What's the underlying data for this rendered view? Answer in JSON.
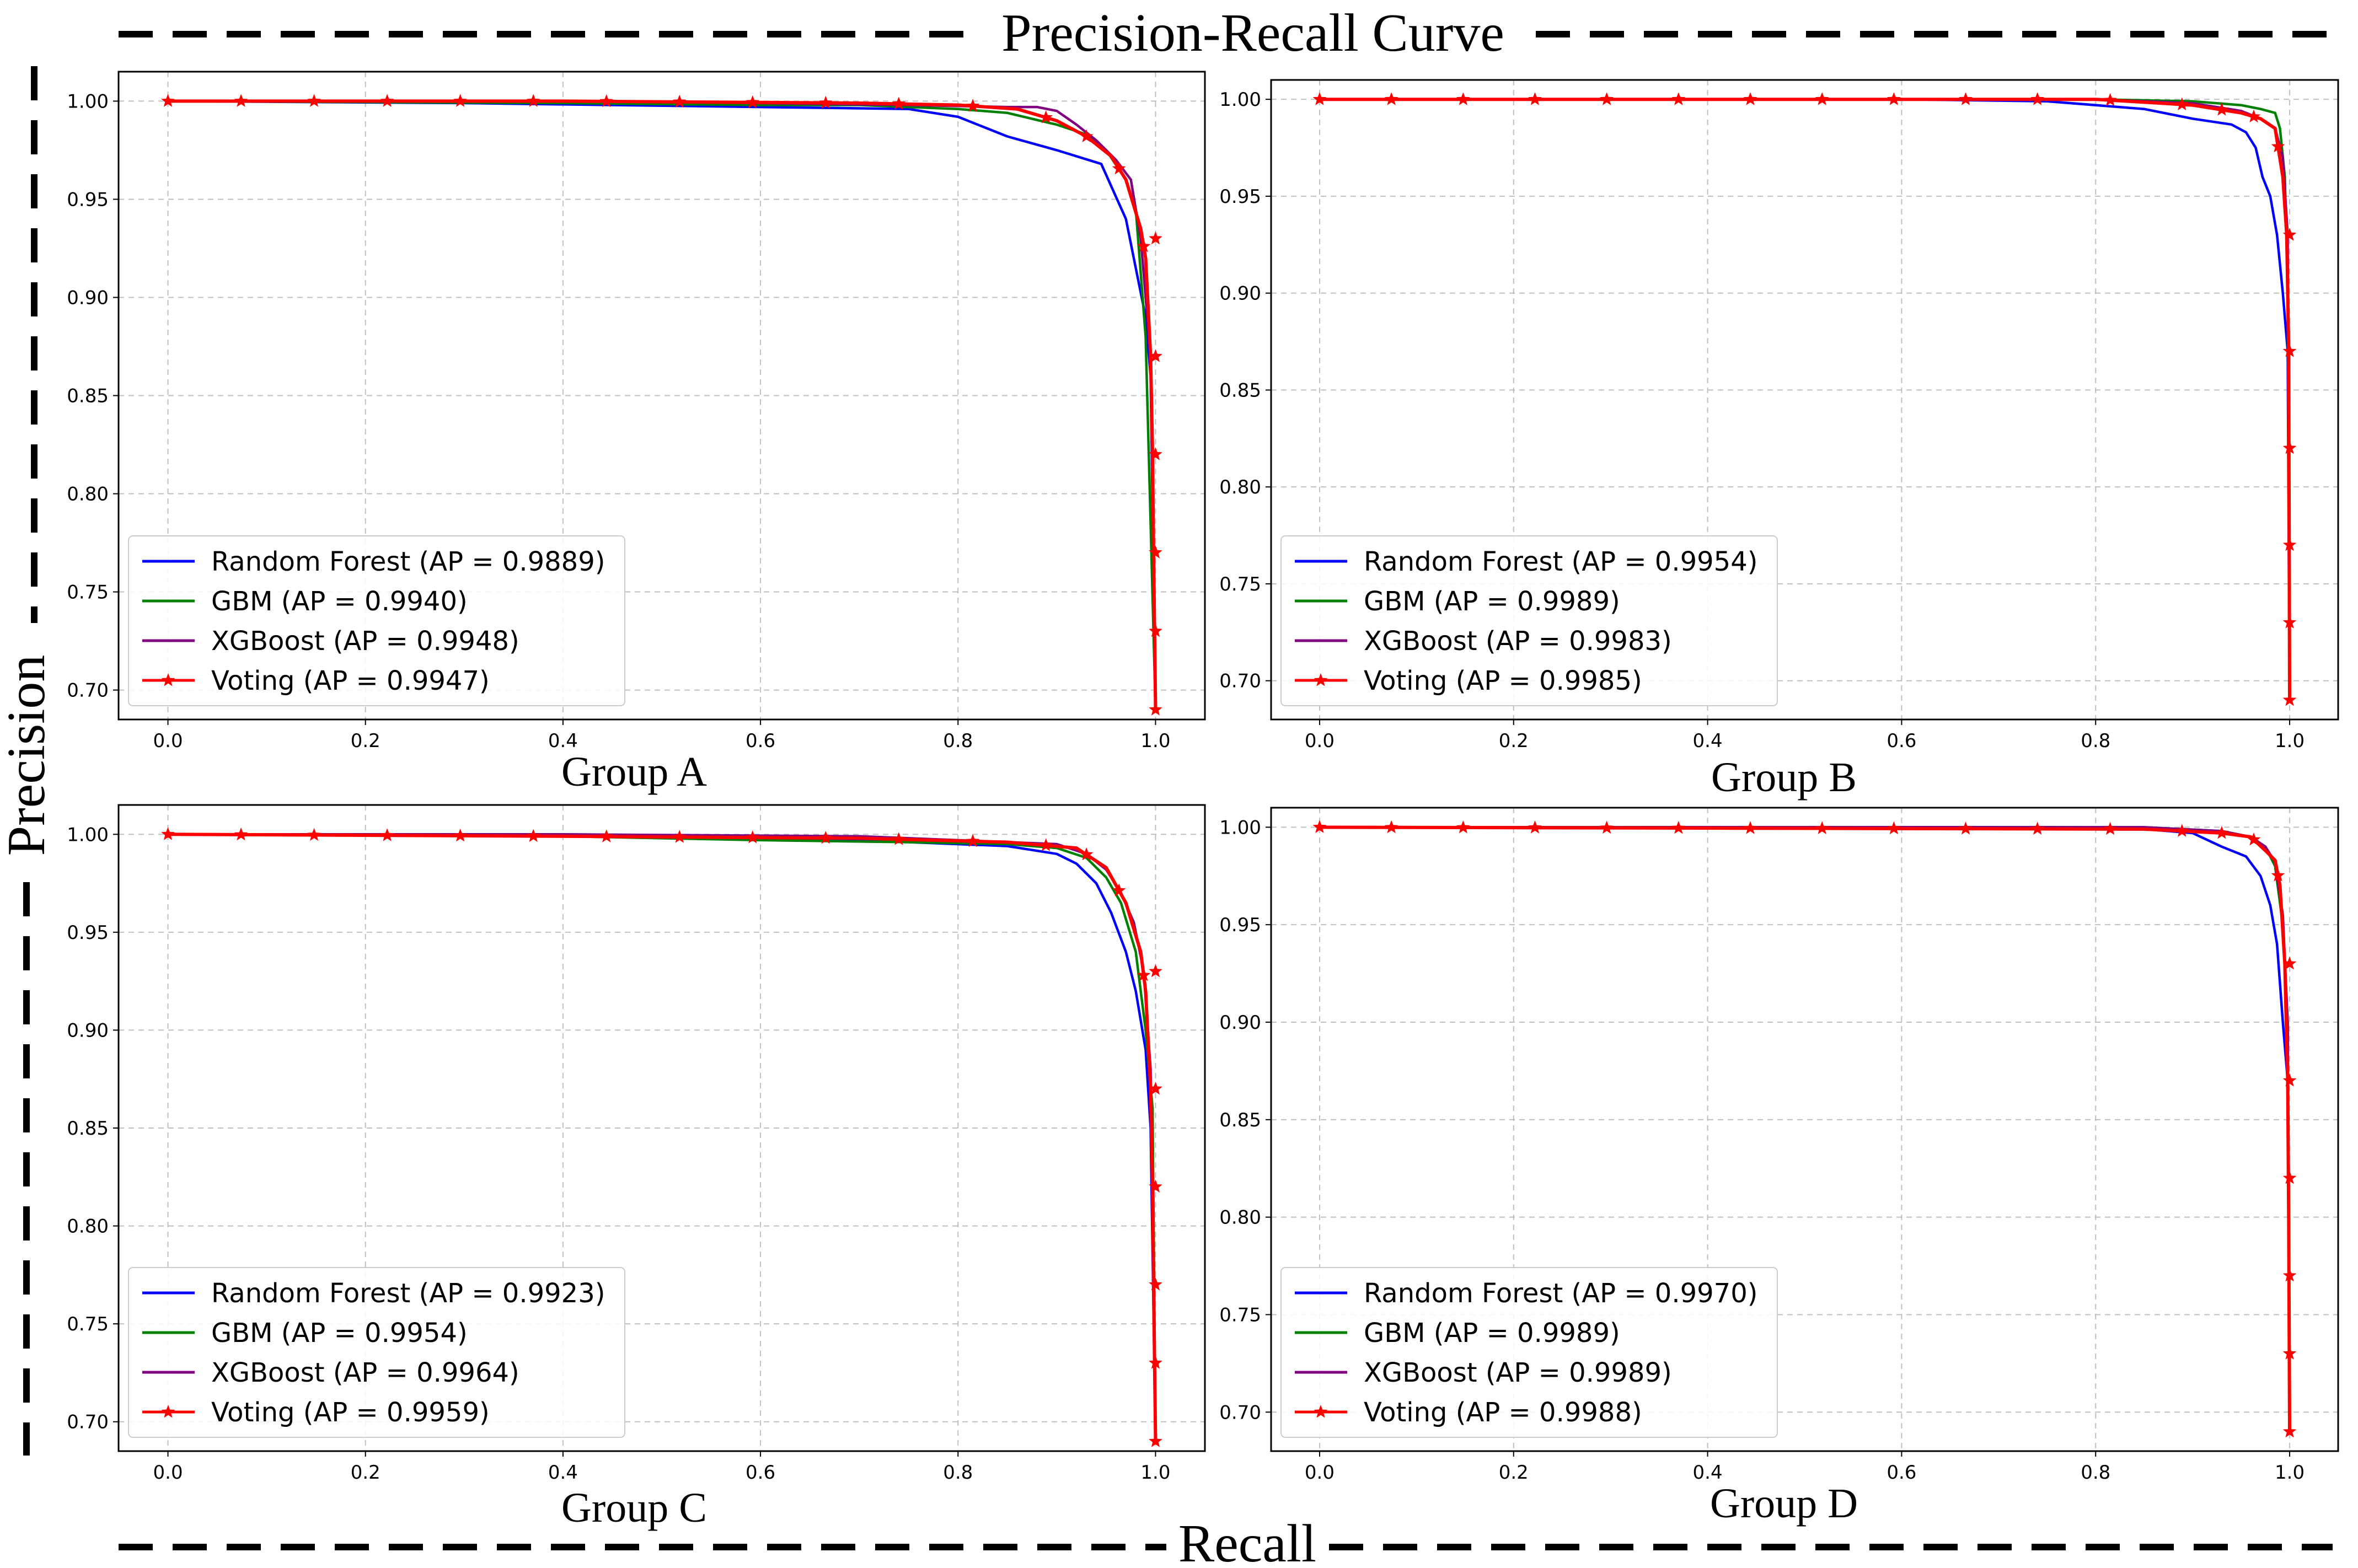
{
  "figure": {
    "title": "Precision-Recall Curve",
    "xlabel": "Recall",
    "ylabel": "Precision"
  },
  "colors": {
    "Random Forest": "#0000ff",
    "GBM": "#008000",
    "XGBoost": "#800080",
    "Voting": "#ff0000"
  },
  "chart_data": [
    {
      "type": "line",
      "title": "Group A",
      "xlim": [
        -0.05,
        1.05
      ],
      "ylim": [
        0.685,
        1.015
      ],
      "xticks": [
        "0.0",
        "0.2",
        "0.4",
        "0.6",
        "0.8",
        "1.0"
      ],
      "yticks": [
        "0.70",
        "0.75",
        "0.80",
        "0.85",
        "0.90",
        "0.95",
        "1.00"
      ],
      "grid": true,
      "legend_position": "lower-left",
      "series": [
        {
          "name": "Random Forest",
          "label": "Random Forest (AP = 0.9889)",
          "ap": 0.9889,
          "x": [
            0.0,
            0.3,
            0.6,
            0.75,
            0.8,
            0.85,
            0.9,
            0.945,
            0.97,
            0.98,
            0.99,
            0.995,
            1.0
          ],
          "y": [
            1.0,
            0.999,
            0.997,
            0.996,
            0.992,
            0.982,
            0.975,
            0.968,
            0.94,
            0.915,
            0.89,
            0.86,
            0.69
          ]
        },
        {
          "name": "GBM",
          "label": "GBM (AP = 0.9940)",
          "ap": 0.994,
          "x": [
            0.0,
            0.4,
            0.6,
            0.7,
            0.8,
            0.85,
            0.9,
            0.93,
            0.95,
            0.97,
            0.98,
            0.99,
            1.0
          ],
          "y": [
            1.0,
            0.999,
            0.998,
            0.998,
            0.996,
            0.994,
            0.988,
            0.983,
            0.975,
            0.96,
            0.945,
            0.88,
            0.69
          ]
        },
        {
          "name": "XGBoost",
          "label": "XGBoost (AP = 0.9948)",
          "ap": 0.9948,
          "x": [
            0.0,
            0.4,
            0.6,
            0.75,
            0.85,
            0.88,
            0.9,
            0.92,
            0.94,
            0.96,
            0.975,
            0.985,
            0.995,
            1.0
          ],
          "y": [
            1.0,
            1.0,
            0.999,
            0.998,
            0.997,
            0.997,
            0.995,
            0.988,
            0.98,
            0.97,
            0.96,
            0.93,
            0.87,
            0.69
          ]
        },
        {
          "name": "Voting",
          "label": "Voting (AP = 0.9947)",
          "ap": 0.9947,
          "x": [
            0.0,
            0.4,
            0.7,
            0.8,
            0.86,
            0.9,
            0.93,
            0.955,
            0.97,
            0.985,
            0.99,
            0.995,
            0.997,
            0.998,
            0.999,
            1.0
          ],
          "y": [
            1.0,
            1.0,
            0.999,
            0.998,
            0.996,
            0.99,
            0.982,
            0.972,
            0.96,
            0.935,
            0.92,
            0.87,
            0.82,
            0.77,
            0.73,
            0.69
          ]
        }
      ]
    },
    {
      "type": "line",
      "title": "Group B",
      "xlim": [
        -0.05,
        1.05
      ],
      "ylim": [
        0.68,
        1.01
      ],
      "xticks": [
        "0.0",
        "0.2",
        "0.4",
        "0.6",
        "0.8",
        "1.0"
      ],
      "yticks": [
        "0.70",
        "0.75",
        "0.80",
        "0.85",
        "0.90",
        "0.95",
        "1.00"
      ],
      "grid": true,
      "legend_position": "lower-left",
      "series": [
        {
          "name": "Random Forest",
          "label": "Random Forest (AP = 0.9954)",
          "ap": 0.9954,
          "x": [
            0.0,
            0.6,
            0.75,
            0.85,
            0.9,
            0.94,
            0.955,
            0.965,
            0.972,
            0.98,
            0.987,
            0.993,
            0.998,
            1.0
          ],
          "y": [
            1.0,
            1.0,
            0.999,
            0.995,
            0.99,
            0.987,
            0.983,
            0.975,
            0.96,
            0.95,
            0.93,
            0.9,
            0.87,
            0.69
          ]
        },
        {
          "name": "GBM",
          "label": "GBM (AP = 0.9989)",
          "ap": 0.9989,
          "x": [
            0.0,
            0.8,
            0.9,
            0.95,
            0.97,
            0.985,
            0.99,
            0.995,
            0.998,
            1.0
          ],
          "y": [
            1.0,
            1.0,
            0.999,
            0.997,
            0.995,
            0.993,
            0.985,
            0.96,
            0.9,
            0.69
          ]
        },
        {
          "name": "XGBoost",
          "label": "XGBoost (AP = 0.9983)",
          "ap": 0.9983,
          "x": [
            0.0,
            0.8,
            0.9,
            0.95,
            0.97,
            0.985,
            0.993,
            0.998,
            1.0
          ],
          "y": [
            1.0,
            1.0,
            0.998,
            0.994,
            0.99,
            0.985,
            0.97,
            0.93,
            0.69
          ]
        },
        {
          "name": "Voting",
          "label": "Voting (AP = 0.9985)",
          "ap": 0.9985,
          "x": [
            0.0,
            0.8,
            0.9,
            0.95,
            0.97,
            0.985,
            0.993,
            0.997,
            0.999,
            1.0
          ],
          "y": [
            1.0,
            1.0,
            0.997,
            0.993,
            0.99,
            0.985,
            0.96,
            0.93,
            0.87,
            0.69
          ]
        }
      ]
    },
    {
      "type": "line",
      "title": "Group C",
      "xlim": [
        -0.05,
        1.05
      ],
      "ylim": [
        0.685,
        1.015
      ],
      "xticks": [
        "0.0",
        "0.2",
        "0.4",
        "0.6",
        "0.8",
        "1.0"
      ],
      "yticks": [
        "0.70",
        "0.75",
        "0.80",
        "0.85",
        "0.90",
        "0.95",
        "1.00"
      ],
      "grid": true,
      "legend_position": "lower-left",
      "series": [
        {
          "name": "Random Forest",
          "label": "Random Forest (AP = 0.9923)",
          "ap": 0.9923,
          "x": [
            0.0,
            0.4,
            0.7,
            0.85,
            0.9,
            0.92,
            0.94,
            0.955,
            0.97,
            0.98,
            0.99,
            0.995,
            1.0
          ],
          "y": [
            1.0,
            0.999,
            0.997,
            0.994,
            0.99,
            0.985,
            0.975,
            0.96,
            0.94,
            0.92,
            0.89,
            0.85,
            0.69
          ]
        },
        {
          "name": "GBM",
          "label": "GBM (AP = 0.9954)",
          "ap": 0.9954,
          "x": [
            0.0,
            0.4,
            0.6,
            0.75,
            0.85,
            0.9,
            0.93,
            0.95,
            0.965,
            0.98,
            0.99,
            0.997,
            1.0
          ],
          "y": [
            1.0,
            0.999,
            0.997,
            0.996,
            0.995,
            0.993,
            0.988,
            0.978,
            0.965,
            0.94,
            0.9,
            0.86,
            0.69
          ]
        },
        {
          "name": "XGBoost",
          "label": "XGBoost (AP = 0.9964)",
          "ap": 0.9964,
          "x": [
            0.0,
            0.4,
            0.7,
            0.8,
            0.9,
            0.93,
            0.95,
            0.965,
            0.978,
            0.988,
            0.995,
            1.0
          ],
          "y": [
            1.0,
            1.0,
            0.999,
            0.997,
            0.995,
            0.99,
            0.982,
            0.97,
            0.955,
            0.93,
            0.88,
            0.69
          ]
        },
        {
          "name": "Voting",
          "label": "Voting (AP = 0.9959)",
          "ap": 0.9959,
          "x": [
            0.0,
            0.4,
            0.7,
            0.85,
            0.92,
            0.95,
            0.97,
            0.985,
            0.99,
            0.995,
            0.997,
            0.998,
            0.999,
            1.0
          ],
          "y": [
            1.0,
            0.999,
            0.998,
            0.996,
            0.993,
            0.983,
            0.965,
            0.94,
            0.92,
            0.87,
            0.82,
            0.77,
            0.73,
            0.69
          ]
        }
      ]
    },
    {
      "type": "line",
      "title": "Group D",
      "xlim": [
        -0.05,
        1.05
      ],
      "ylim": [
        0.68,
        1.01
      ],
      "xticks": [
        "0.0",
        "0.2",
        "0.4",
        "0.6",
        "0.8",
        "1.0"
      ],
      "yticks": [
        "0.70",
        "0.75",
        "0.80",
        "0.85",
        "0.90",
        "0.95",
        "1.00"
      ],
      "grid": true,
      "legend_position": "lower-left",
      "series": [
        {
          "name": "Random Forest",
          "label": "Random Forest (AP = 0.9970)",
          "ap": 0.997,
          "x": [
            0.0,
            0.75,
            0.85,
            0.9,
            0.93,
            0.955,
            0.97,
            0.98,
            0.987,
            0.993,
            0.998,
            1.0
          ],
          "y": [
            1.0,
            1.0,
            0.999,
            0.997,
            0.99,
            0.985,
            0.975,
            0.96,
            0.94,
            0.9,
            0.87,
            0.69
          ]
        },
        {
          "name": "GBM",
          "label": "GBM (AP = 0.9989)",
          "ap": 0.9989,
          "x": [
            0.0,
            0.85,
            0.93,
            0.96,
            0.975,
            0.985,
            0.993,
            0.998,
            1.0
          ],
          "y": [
            1.0,
            1.0,
            0.998,
            0.995,
            0.99,
            0.98,
            0.95,
            0.9,
            0.69
          ]
        },
        {
          "name": "XGBoost",
          "label": "XGBoost (AP = 0.9989)",
          "ap": 0.9989,
          "x": [
            0.0,
            0.85,
            0.93,
            0.96,
            0.975,
            0.985,
            0.993,
            0.998,
            1.0
          ],
          "y": [
            1.0,
            1.0,
            0.998,
            0.995,
            0.99,
            0.982,
            0.955,
            0.9,
            0.69
          ]
        },
        {
          "name": "Voting",
          "label": "Voting (AP = 0.9988)",
          "ap": 0.9988,
          "x": [
            0.0,
            0.85,
            0.93,
            0.96,
            0.975,
            0.985,
            0.99,
            0.995,
            0.998,
            0.999,
            1.0
          ],
          "y": [
            1.0,
            0.999,
            0.997,
            0.995,
            0.988,
            0.983,
            0.97,
            0.93,
            0.87,
            0.8,
            0.69
          ]
        }
      ]
    }
  ]
}
